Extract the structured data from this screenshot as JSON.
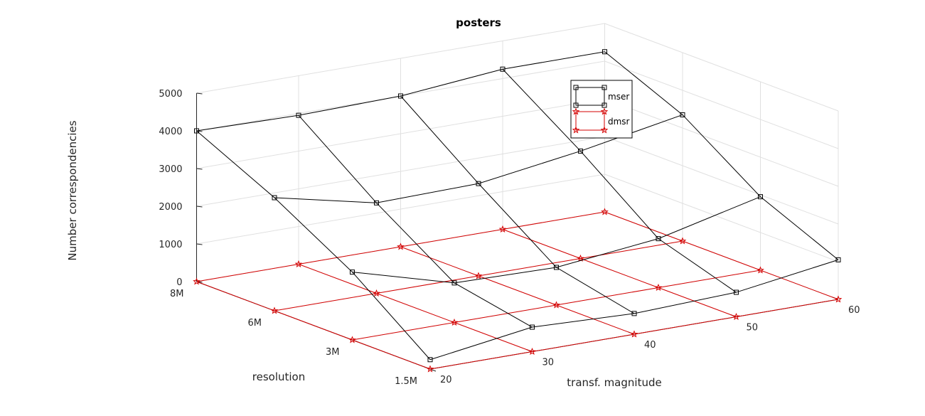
{
  "chart_data": {
    "type": "line",
    "title": "posters",
    "xlabel": "transf. magnitude",
    "ylabel": "resolution",
    "zlabel": "Number correspondencies",
    "x": [
      20,
      30,
      40,
      50,
      60
    ],
    "x_tick_labels": [
      "20",
      "30",
      "40",
      "50",
      "60"
    ],
    "y": [
      "1.5M",
      "3M",
      "6M",
      "8M"
    ],
    "y_tick_labels": [
      "1.5M",
      "3M",
      "6M",
      "8M"
    ],
    "zlim": [
      0,
      5000
    ],
    "z_tick_labels": [
      "0",
      "1000",
      "2000",
      "3000",
      "4000",
      "5000"
    ],
    "grid": true,
    "legend_position": "top-right",
    "series": [
      {
        "name": "mser",
        "color": "#000000",
        "marker": "square",
        "values_by_resolution": {
          "1.5M": [
            250,
            650,
            550,
            650,
            1050
          ],
          "3M": [
            1800,
            1050,
            1000,
            1300,
            1950
          ],
          "6M": [
            3000,
            2400,
            2450,
            2850,
            3350
          ],
          "8M": [
            4000,
            3950,
            4000,
            4250,
            4250
          ]
        }
      },
      {
        "name": "dmsr",
        "color": "#d40000",
        "marker": "star",
        "values_by_resolution": {
          "1.5M": [
            0,
            0,
            0,
            0,
            0
          ],
          "3M": [
            0,
            0,
            0,
            0,
            0
          ],
          "6M": [
            0,
            0,
            0,
            0,
            0
          ],
          "8M": [
            0,
            0,
            0,
            0,
            0
          ]
        }
      }
    ]
  }
}
